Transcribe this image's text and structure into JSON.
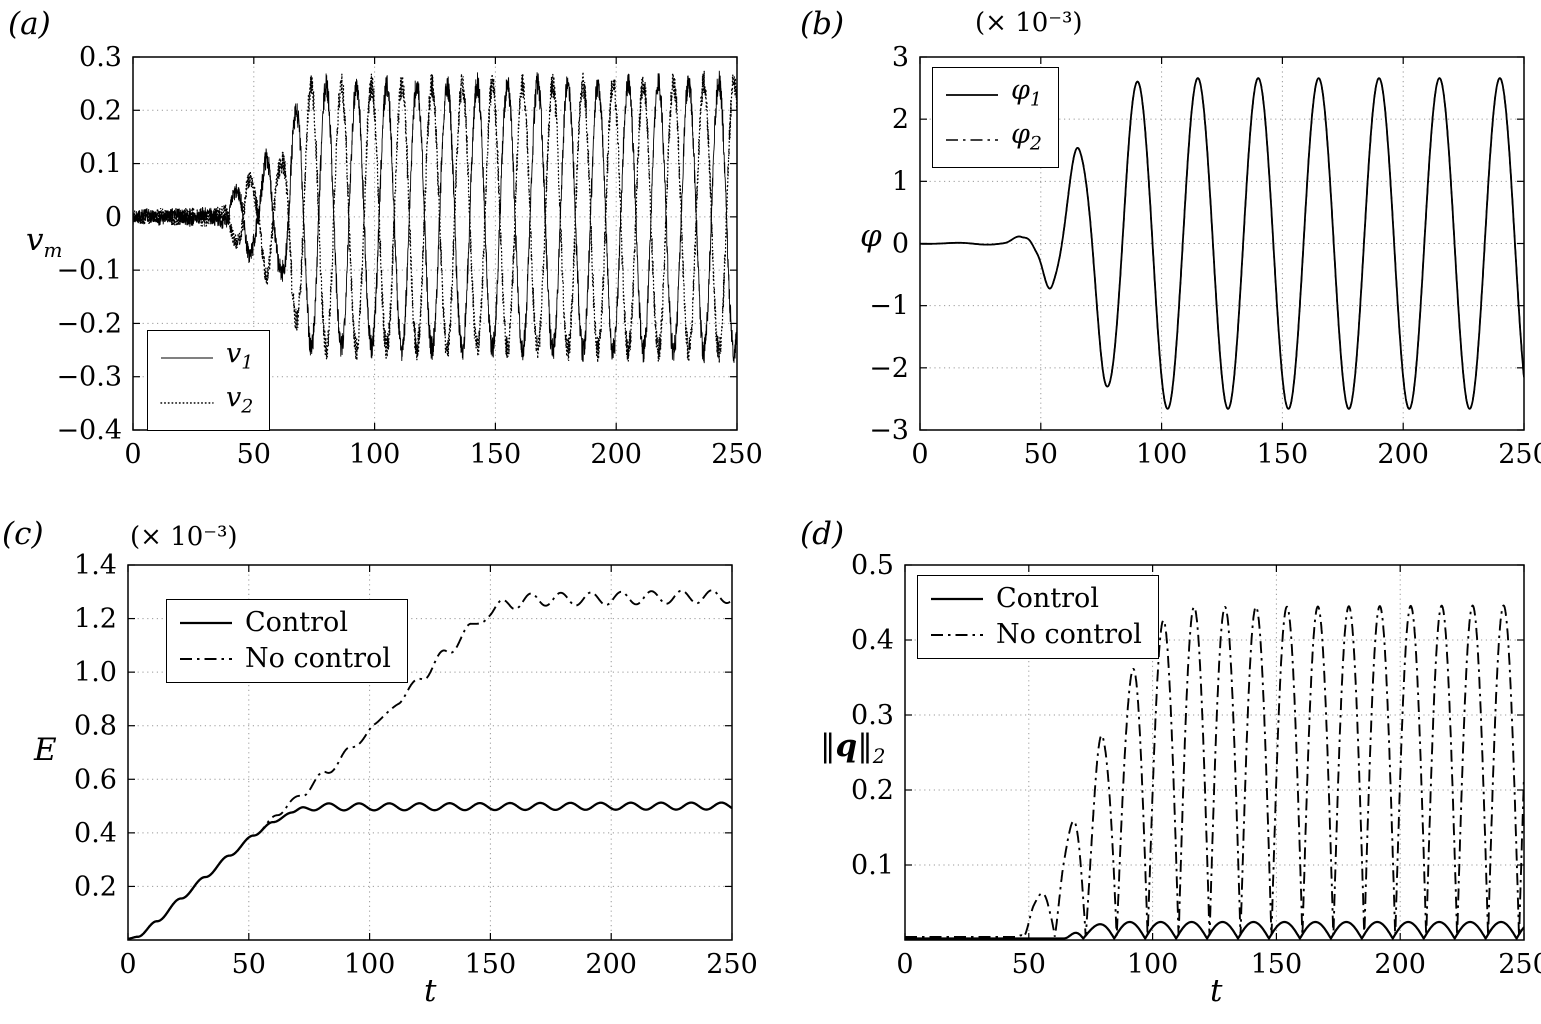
{
  "figure": {
    "background": "#ffffff",
    "line_color": "#000000",
    "grid_color": "#999999"
  },
  "chart_data": [
    {
      "id": "a",
      "type": "line",
      "panel_label": "(a)",
      "ylabel": {
        "pre": "",
        "main": "v",
        "post": "",
        "sub": "m"
      },
      "xlabel": "",
      "scale_label": "",
      "xlim": [
        0,
        250
      ],
      "ylim": [
        -0.4,
        0.3
      ],
      "xtick_values": [
        0,
        50,
        100,
        150,
        200,
        250
      ],
      "xtick_labels": [
        "0",
        "50",
        "100",
        "150",
        "200",
        "250"
      ],
      "ytick_values": [
        0.3,
        0.2,
        0.1,
        0,
        -0.1,
        -0.2,
        -0.3,
        -0.4
      ],
      "ytick_labels": [
        "0.3",
        "0.2",
        "0.1",
        "0",
        "−0.1",
        "−0.2",
        "−0.3",
        "−0.4"
      ],
      "grid": true,
      "legend": {
        "position": "bottom-left",
        "entries": [
          {
            "main": "v",
            "sub": "1",
            "italic": true,
            "style": "solid",
            "width": 1
          },
          {
            "main": "v",
            "sub": "2",
            "italic": true,
            "style": "dotted",
            "width": 1.4
          }
        ]
      },
      "series": [
        {
          "sid": "v1",
          "label": "v1",
          "type": "osc",
          "period": 12.5,
          "t0": 76.875,
          "phase": 0,
          "env": [
            [
              0,
              0.004
            ],
            [
              36,
              0.005
            ],
            [
              42,
              0.045
            ],
            [
              47,
              0.08
            ],
            [
              51,
              0.055
            ],
            [
              56,
              0.115
            ],
            [
              61,
              0.1
            ],
            [
              66,
              0.19
            ],
            [
              74,
              0.246
            ],
            [
              250,
              0.252
            ]
          ],
          "noise": [
            [
              0,
              0.012
            ],
            [
              40,
              0.015
            ],
            [
              55,
              0.02
            ],
            [
              70,
              0.024
            ],
            [
              250,
              0.024
            ]
          ],
          "style": "solid",
          "width": 0.9,
          "samples": 3200,
          "seed": 7
        },
        {
          "sid": "v2",
          "label": "v2",
          "type": "osc",
          "period": 12.5,
          "t0": 76.875,
          "phase": 3.14159,
          "env": [
            [
              0,
              0.004
            ],
            [
              36,
              0.005
            ],
            [
              42,
              0.045
            ],
            [
              47,
              0.08
            ],
            [
              51,
              0.055
            ],
            [
              56,
              0.115
            ],
            [
              61,
              0.1
            ],
            [
              66,
              0.19
            ],
            [
              74,
              0.246
            ],
            [
              250,
              0.252
            ]
          ],
          "noise": [
            [
              0,
              0.012
            ],
            [
              40,
              0.015
            ],
            [
              55,
              0.02
            ],
            [
              70,
              0.024
            ],
            [
              250,
              0.024
            ]
          ],
          "style": "dotted",
          "width": 1.3,
          "samples": 3200,
          "seed": 13
        }
      ]
    },
    {
      "id": "b",
      "type": "line",
      "panel_label": "(b)",
      "ylabel": {
        "pre": "",
        "main": "φ",
        "post": "",
        "sub": ""
      },
      "xlabel": "",
      "scale_label": "(× 10⁻³)",
      "xlim": [
        0,
        250
      ],
      "ylim": [
        -3,
        3
      ],
      "xtick_values": [
        0,
        50,
        100,
        150,
        200,
        250
      ],
      "xtick_labels": [
        "0",
        "50",
        "100",
        "150",
        "200",
        "250"
      ],
      "ytick_values": [
        3,
        2,
        1,
        0,
        -1,
        -2,
        -3
      ],
      "ytick_labels": [
        "3",
        "2",
        "1",
        "0",
        "−1",
        "−2",
        "−3"
      ],
      "grid": true,
      "legend": {
        "position": "top-left",
        "entries": [
          {
            "main": "φ",
            "sub": "1",
            "italic": true,
            "style": "solid",
            "width": 1.8
          },
          {
            "main": "φ",
            "sub": "2",
            "italic": true,
            "style": "dashdot",
            "width": 1.6
          }
        ]
      },
      "series": [
        {
          "sid": "phi1",
          "label": "phi1",
          "type": "osc",
          "period": 25,
          "t0": 83.75,
          "phase": 0,
          "env": [
            [
              0,
              0.005
            ],
            [
              34,
              0.02
            ],
            [
              42,
              0.12
            ],
            [
              48,
              0.3
            ],
            [
              55,
              0.8
            ],
            [
              66,
              1.55
            ],
            [
              77,
              2.3
            ],
            [
              88,
              2.6
            ],
            [
              100,
              2.66
            ],
            [
              250,
              2.66
            ]
          ],
          "style": "solid",
          "width": 1.8,
          "samples": 1600,
          "seed": 3
        },
        {
          "sid": "phi2",
          "label": "phi2",
          "type": "osc",
          "period": 25,
          "t0": 83.75,
          "phase": 0,
          "env": [
            [
              0,
              0.005
            ],
            [
              34,
              0.02
            ],
            [
              42,
              0.12
            ],
            [
              48,
              0.3
            ],
            [
              55,
              0.8
            ],
            [
              66,
              1.55
            ],
            [
              77,
              2.3
            ],
            [
              88,
              2.6
            ],
            [
              100,
              2.66
            ],
            [
              250,
              2.66
            ]
          ],
          "style": "dashdot",
          "width": 1.6,
          "samples": 1600,
          "seed": 4
        }
      ]
    },
    {
      "id": "c",
      "type": "line",
      "panel_label": "(c)",
      "ylabel": {
        "pre": "",
        "main": "E",
        "post": "",
        "sub": ""
      },
      "xlabel": "t",
      "scale_label": "(× 10⁻³)",
      "xlim": [
        0,
        250
      ],
      "ylim": [
        0,
        1.4
      ],
      "xtick_values": [
        0,
        50,
        100,
        150,
        200,
        250
      ],
      "xtick_labels": [
        "0",
        "50",
        "100",
        "150",
        "200",
        "250"
      ],
      "ytick_values": [
        1.4,
        1.2,
        1.0,
        0.8,
        0.6,
        0.4,
        0.2
      ],
      "ytick_labels": [
        "1.4",
        "1.2",
        "1.0",
        "0.8",
        "0.6",
        "0.4",
        "0.2"
      ],
      "grid": true,
      "legend": {
        "position": "top-left-inset",
        "entries": [
          {
            "main": "Control",
            "sub": "",
            "italic": false,
            "style": "solid",
            "width": 2.3
          },
          {
            "main": "No control",
            "sub": "",
            "italic": false,
            "style": "dashdot",
            "width": 1.9
          }
        ]
      },
      "series": [
        {
          "sid": "E-nocontrol",
          "label": "No control",
          "type": "trend",
          "period": 12.5,
          "t0": 1,
          "env": [
            [
              0,
              0.005
            ],
            [
              4,
              0.012
            ],
            [
              12,
              0.07
            ],
            [
              22,
              0.155
            ],
            [
              32,
              0.235
            ],
            [
              42,
              0.315
            ],
            [
              52,
              0.39
            ],
            [
              62,
              0.468
            ],
            [
              72,
              0.545
            ],
            [
              82,
              0.625
            ],
            [
              92,
              0.71
            ],
            [
              102,
              0.8
            ],
            [
              112,
              0.89
            ],
            [
              122,
              0.985
            ],
            [
              132,
              1.075
            ],
            [
              142,
              1.165
            ],
            [
              150,
              1.225
            ],
            [
              158,
              1.258
            ],
            [
              170,
              1.272
            ],
            [
              250,
              1.282
            ]
          ],
          "ripple": [
            [
              0,
              0
            ],
            [
              58,
              0
            ],
            [
              68,
              0.008
            ],
            [
              138,
              0.014
            ],
            [
              152,
              0.024
            ],
            [
              250,
              0.024
            ]
          ],
          "style": "dashdot",
          "width": 1.9,
          "samples": 1600,
          "seed": 5
        },
        {
          "sid": "E-control",
          "label": "Control",
          "type": "trend",
          "period": 12.5,
          "t0": 5,
          "env": [
            [
              0,
              0.005
            ],
            [
              4,
              0.012
            ],
            [
              12,
              0.07
            ],
            [
              22,
              0.155
            ],
            [
              32,
              0.235
            ],
            [
              42,
              0.315
            ],
            [
              52,
              0.39
            ],
            [
              60,
              0.44
            ],
            [
              68,
              0.476
            ],
            [
              76,
              0.497
            ],
            [
              250,
              0.5
            ]
          ],
          "ripple": [
            [
              0,
              0
            ],
            [
              66,
              0
            ],
            [
              74,
              0.013
            ],
            [
              250,
              0.013
            ]
          ],
          "style": "solid",
          "width": 2.3,
          "samples": 1600,
          "seed": 6
        }
      ]
    },
    {
      "id": "d",
      "type": "line",
      "panel_label": "(d)",
      "ylabel": {
        "pre": "‖",
        "main": "q",
        "post": "‖",
        "sub": "2"
      },
      "xlabel": "t",
      "scale_label": "",
      "xlim": [
        0,
        250
      ],
      "ylim": [
        0,
        0.5
      ],
      "xtick_values": [
        0,
        50,
        100,
        150,
        200,
        250
      ],
      "xtick_labels": [
        "0",
        "50",
        "100",
        "150",
        "200",
        "250"
      ],
      "ytick_values": [
        0.5,
        0.4,
        0.3,
        0.2,
        0.1
      ],
      "ytick_labels": [
        "0.5",
        "0.4",
        "0.3",
        "0.2",
        "0.1"
      ],
      "grid": true,
      "legend": {
        "position": "top-left",
        "entries": [
          {
            "main": "Control",
            "sub": "",
            "italic": false,
            "style": "solid",
            "width": 2.3
          },
          {
            "main": "No control",
            "sub": "",
            "italic": false,
            "style": "dashdot",
            "width": 1.9
          }
        ]
      },
      "series": [
        {
          "sid": "q-nocontrol",
          "label": "No control",
          "type": "absosc",
          "base": 0.004,
          "period": 12.5,
          "t0": 48,
          "env": [
            [
              0,
              0
            ],
            [
              45,
              0
            ],
            [
              52,
              0.05
            ],
            [
              58,
              0.068
            ],
            [
              64,
              0.125
            ],
            [
              72,
              0.2
            ],
            [
              80,
              0.27
            ],
            [
              88,
              0.33
            ],
            [
              96,
              0.385
            ],
            [
              106,
              0.425
            ],
            [
              116,
              0.44
            ],
            [
              250,
              0.442
            ]
          ],
          "style": "dashdot",
          "width": 1.9,
          "samples": 2400,
          "seed": 8
        },
        {
          "sid": "q-control",
          "label": "Control",
          "type": "absosc",
          "base": 0.002,
          "period": 12.5,
          "t0": 72,
          "env": [
            [
              0,
              0
            ],
            [
              64,
              0
            ],
            [
              72,
              0.016
            ],
            [
              85,
              0.022
            ],
            [
              250,
              0.022
            ]
          ],
          "style": "solid",
          "width": 2.2,
          "samples": 2000,
          "seed": 9
        }
      ]
    }
  ]
}
